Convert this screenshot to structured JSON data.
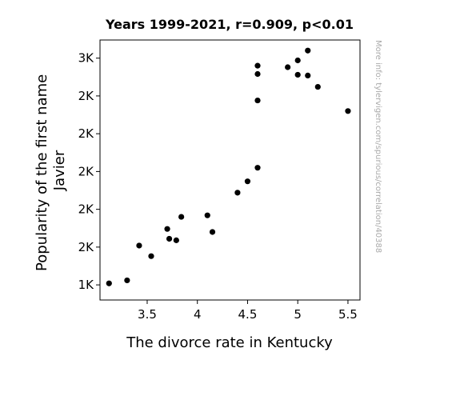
{
  "chart_data": {
    "type": "scatter",
    "title": "Years 1999-2021, r=0.909, p<0.01",
    "xlabel": "The divorce rate in Kentucky",
    "ylabel": "Popularity of the first name Javier",
    "watermark": "More info: tylervigen.com/spurious/correlation/40388",
    "xlim": [
      3.03,
      5.62
    ],
    "ylim": [
      1150,
      2870
    ],
    "x_ticks": [
      {
        "value": 3.5,
        "label": "3.5"
      },
      {
        "value": 4.0,
        "label": "4"
      },
      {
        "value": 4.5,
        "label": "4.5"
      },
      {
        "value": 5.0,
        "label": "5"
      },
      {
        "value": 5.5,
        "label": "5.5"
      }
    ],
    "y_ticks": [
      {
        "value": 1250,
        "label": "1K"
      },
      {
        "value": 1500,
        "label": "2K"
      },
      {
        "value": 1750,
        "label": "2K"
      },
      {
        "value": 2000,
        "label": "2K"
      },
      {
        "value": 2250,
        "label": "2K"
      },
      {
        "value": 2500,
        "label": "2K"
      },
      {
        "value": 2750,
        "label": "3K"
      }
    ],
    "grid": false,
    "marker_color": "#000000",
    "points": [
      {
        "x": 3.12,
        "y": 1260
      },
      {
        "x": 3.3,
        "y": 1280
      },
      {
        "x": 3.42,
        "y": 1510
      },
      {
        "x": 3.54,
        "y": 1440
      },
      {
        "x": 3.7,
        "y": 1620
      },
      {
        "x": 3.72,
        "y": 1555
      },
      {
        "x": 3.79,
        "y": 1545
      },
      {
        "x": 3.84,
        "y": 1700
      },
      {
        "x": 4.1,
        "y": 1710
      },
      {
        "x": 4.15,
        "y": 1600
      },
      {
        "x": 4.4,
        "y": 1860
      },
      {
        "x": 4.5,
        "y": 1935
      },
      {
        "x": 4.6,
        "y": 2025
      },
      {
        "x": 4.6,
        "y": 2470
      },
      {
        "x": 4.6,
        "y": 2645
      },
      {
        "x": 4.6,
        "y": 2700
      },
      {
        "x": 4.9,
        "y": 2690
      },
      {
        "x": 5.0,
        "y": 2735
      },
      {
        "x": 5.0,
        "y": 2640
      },
      {
        "x": 5.1,
        "y": 2800
      },
      {
        "x": 5.1,
        "y": 2635
      },
      {
        "x": 5.2,
        "y": 2560
      },
      {
        "x": 5.5,
        "y": 2400
      }
    ]
  }
}
